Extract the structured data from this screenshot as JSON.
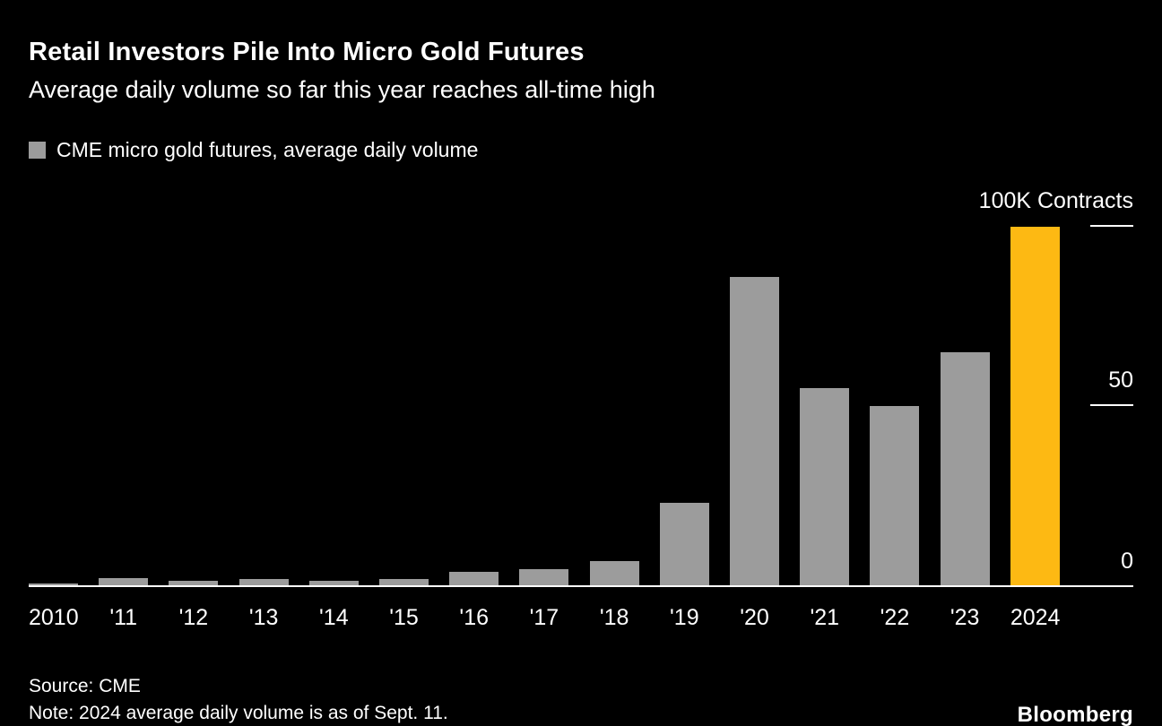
{
  "chart_data": {
    "type": "bar",
    "title": "Retail Investors Pile Into Micro Gold Futures",
    "subtitle": "Average daily volume so far this year reaches all-time high",
    "legend_label": "CME micro gold futures, average daily volume",
    "categories": [
      "2010",
      "'11",
      "'12",
      "'13",
      "'14",
      "'15",
      "'16",
      "'17",
      "'18",
      "'19",
      "'20",
      "'21",
      "'22",
      "'23",
      "2024"
    ],
    "values": [
      0.5,
      2,
      1.2,
      1.8,
      1.3,
      1.8,
      3.8,
      4.5,
      6.8,
      23,
      86,
      55,
      50,
      65,
      100
    ],
    "unit": "K Contracts",
    "ylim": [
      0,
      100
    ],
    "yticks": [
      {
        "label": "100K Contracts",
        "value": 100
      },
      {
        "label": "50",
        "value": 50
      },
      {
        "label": "0",
        "value": 0
      }
    ],
    "grid": false,
    "legend_position": "top-left",
    "bar_color": "#9c9c9c",
    "highlight_color": "#fdb913",
    "highlight_index": 14,
    "source": "Source: CME",
    "note": "Note: 2024 average daily volume is as of Sept. 11.",
    "brand": "Bloomberg"
  }
}
